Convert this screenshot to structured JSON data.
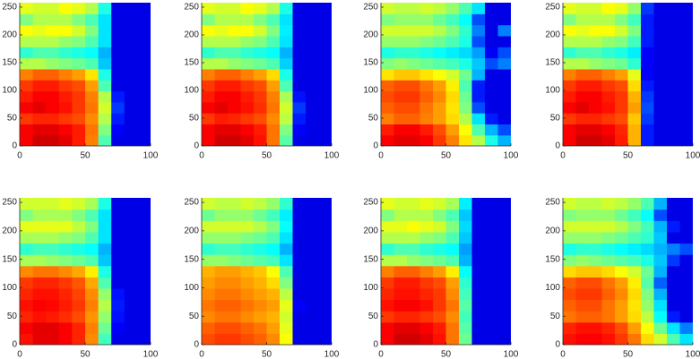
{
  "chart_data": [
    {
      "type": "heatmap",
      "xlim": [
        0,
        100
      ],
      "ylim": [
        0,
        258
      ],
      "xticks": [
        0,
        50,
        100
      ],
      "yticks": [
        0,
        50,
        100,
        150,
        200,
        250
      ],
      "clim": [
        0,
        100
      ],
      "colormap": "jet",
      "z": [
        [
          88,
          92,
          92,
          90,
          85,
          75,
          45,
          10,
          10,
          10
        ],
        [
          88,
          90,
          90,
          88,
          85,
          76,
          50,
          12,
          10,
          10
        ],
        [
          82,
          84,
          84,
          82,
          80,
          74,
          55,
          15,
          10,
          10
        ],
        [
          88,
          90,
          88,
          86,
          82,
          76,
          58,
          18,
          10,
          10
        ],
        [
          85,
          88,
          88,
          85,
          82,
          75,
          55,
          15,
          10,
          10
        ],
        [
          82,
          85,
          85,
          82,
          80,
          72,
          45,
          10,
          10,
          10
        ],
        [
          75,
          78,
          78,
          75,
          72,
          65,
          40,
          10,
          10,
          10
        ],
        [
          55,
          55,
          52,
          50,
          48,
          45,
          32,
          10,
          10,
          10
        ],
        [
          42,
          45,
          45,
          42,
          40,
          38,
          30,
          10,
          10,
          10
        ],
        [
          55,
          55,
          55,
          52,
          50,
          45,
          35,
          10,
          10,
          10
        ],
        [
          62,
          60,
          62,
          62,
          58,
          50,
          35,
          10,
          10,
          10
        ],
        [
          50,
          55,
          55,
          55,
          50,
          45,
          35,
          10,
          10,
          10
        ],
        [
          60,
          58,
          58,
          62,
          60,
          55,
          40,
          10,
          10,
          10
        ]
      ]
    },
    {
      "type": "heatmap",
      "xlim": [
        0,
        100
      ],
      "ylim": [
        0,
        258
      ],
      "xticks": [
        0,
        50,
        100
      ],
      "yticks": [
        0,
        50,
        100,
        150,
        200,
        250
      ],
      "clim": [
        0,
        100
      ],
      "colormap": "jet",
      "z": [
        [
          88,
          92,
          92,
          90,
          86,
          76,
          46,
          10,
          10,
          10
        ],
        [
          88,
          90,
          90,
          88,
          85,
          76,
          50,
          12,
          10,
          10
        ],
        [
          82,
          85,
          84,
          82,
          80,
          74,
          56,
          15,
          10,
          10
        ],
        [
          88,
          90,
          88,
          86,
          83,
          76,
          58,
          18,
          10,
          10
        ],
        [
          85,
          88,
          88,
          85,
          82,
          75,
          54,
          14,
          10,
          10
        ],
        [
          82,
          85,
          85,
          82,
          80,
          72,
          45,
          10,
          10,
          10
        ],
        [
          75,
          78,
          78,
          75,
          72,
          66,
          40,
          10,
          10,
          10
        ],
        [
          55,
          55,
          52,
          50,
          48,
          45,
          33,
          10,
          10,
          10
        ],
        [
          42,
          45,
          45,
          42,
          40,
          38,
          30,
          10,
          10,
          10
        ],
        [
          55,
          55,
          55,
          52,
          50,
          45,
          35,
          10,
          10,
          10
        ],
        [
          62,
          60,
          62,
          62,
          58,
          50,
          36,
          10,
          10,
          10
        ],
        [
          50,
          55,
          55,
          55,
          50,
          45,
          35,
          10,
          10,
          10
        ],
        [
          60,
          58,
          58,
          62,
          60,
          55,
          40,
          10,
          10,
          10
        ]
      ]
    },
    {
      "type": "heatmap",
      "xlim": [
        0,
        100
      ],
      "ylim": [
        0,
        258
      ],
      "xticks": [
        0,
        50,
        100
      ],
      "yticks": [
        0,
        50,
        100,
        150,
        200,
        250
      ],
      "clim": [
        0,
        100
      ],
      "colormap": "jet",
      "z": [
        [
          88,
          90,
          90,
          88,
          82,
          75,
          65,
          55,
          40,
          30
        ],
        [
          85,
          88,
          88,
          85,
          80,
          72,
          62,
          45,
          30,
          20
        ],
        [
          75,
          78,
          78,
          75,
          72,
          66,
          55,
          35,
          15,
          10
        ],
        [
          78,
          80,
          80,
          76,
          72,
          65,
          50,
          20,
          10,
          10
        ],
        [
          80,
          82,
          82,
          78,
          74,
          66,
          48,
          15,
          10,
          10
        ],
        [
          78,
          80,
          80,
          76,
          72,
          64,
          45,
          15,
          10,
          10
        ],
        [
          65,
          68,
          68,
          65,
          62,
          58,
          48,
          30,
          10,
          10
        ],
        [
          50,
          52,
          50,
          48,
          46,
          44,
          40,
          32,
          20,
          25
        ],
        [
          40,
          42,
          42,
          40,
          38,
          36,
          34,
          28,
          12,
          20
        ],
        [
          52,
          52,
          52,
          50,
          48,
          45,
          40,
          20,
          10,
          10
        ],
        [
          58,
          58,
          58,
          58,
          55,
          50,
          42,
          25,
          10,
          25
        ],
        [
          50,
          52,
          52,
          52,
          48,
          44,
          38,
          20,
          10,
          10
        ],
        [
          58,
          56,
          56,
          58,
          56,
          52,
          45,
          35,
          10,
          10
        ]
      ]
    },
    {
      "type": "heatmap",
      "xlim": [
        0,
        100
      ],
      "ylim": [
        0,
        258
      ],
      "xticks": [
        0,
        50,
        100
      ],
      "yticks": [
        0,
        50,
        100,
        150,
        200,
        250
      ],
      "clim": [
        0,
        100
      ],
      "colormap": "jet",
      "z": [
        [
          88,
          92,
          92,
          90,
          85,
          70,
          15,
          10,
          10,
          10
        ],
        [
          88,
          90,
          90,
          88,
          84,
          70,
          15,
          10,
          10,
          10
        ],
        [
          82,
          84,
          84,
          82,
          80,
          68,
          18,
          10,
          10,
          10
        ],
        [
          88,
          90,
          88,
          86,
          82,
          72,
          20,
          10,
          10,
          10
        ],
        [
          85,
          88,
          88,
          85,
          82,
          70,
          18,
          10,
          10,
          10
        ],
        [
          82,
          85,
          85,
          82,
          80,
          66,
          15,
          10,
          10,
          10
        ],
        [
          75,
          78,
          78,
          75,
          72,
          60,
          12,
          10,
          10,
          10
        ],
        [
          55,
          55,
          52,
          50,
          48,
          42,
          12,
          10,
          10,
          10
        ],
        [
          42,
          45,
          45,
          42,
          40,
          36,
          12,
          10,
          10,
          10
        ],
        [
          55,
          55,
          55,
          52,
          50,
          44,
          15,
          10,
          10,
          10
        ],
        [
          62,
          60,
          62,
          62,
          58,
          50,
          15,
          10,
          10,
          10
        ],
        [
          50,
          55,
          55,
          55,
          50,
          44,
          15,
          10,
          10,
          10
        ],
        [
          60,
          58,
          58,
          62,
          60,
          52,
          18,
          10,
          10,
          10
        ]
      ]
    },
    {
      "type": "heatmap",
      "xlim": [
        0,
        100
      ],
      "ylim": [
        0,
        258
      ],
      "xticks": [
        0,
        50,
        100
      ],
      "yticks": [
        0,
        50,
        100,
        150,
        200,
        250
      ],
      "clim": [
        0,
        100
      ],
      "colormap": "jet",
      "z": [
        [
          86,
          90,
          90,
          88,
          84,
          74,
          44,
          10,
          10,
          10
        ],
        [
          88,
          90,
          90,
          88,
          84,
          75,
          48,
          12,
          10,
          10
        ],
        [
          84,
          86,
          85,
          83,
          80,
          73,
          52,
          14,
          10,
          10
        ],
        [
          86,
          88,
          87,
          85,
          82,
          75,
          55,
          15,
          10,
          10
        ],
        [
          84,
          86,
          86,
          84,
          81,
          74,
          52,
          14,
          10,
          10
        ],
        [
          82,
          84,
          84,
          82,
          79,
          71,
          45,
          10,
          10,
          10
        ],
        [
          74,
          76,
          76,
          74,
          71,
          64,
          40,
          10,
          10,
          10
        ],
        [
          54,
          54,
          52,
          50,
          48,
          45,
          32,
          10,
          10,
          10
        ],
        [
          42,
          44,
          44,
          42,
          40,
          38,
          30,
          10,
          10,
          10
        ],
        [
          54,
          54,
          54,
          52,
          50,
          45,
          35,
          10,
          10,
          10
        ],
        [
          60,
          60,
          60,
          60,
          56,
          50,
          35,
          10,
          10,
          10
        ],
        [
          50,
          54,
          54,
          54,
          50,
          45,
          35,
          10,
          10,
          10
        ],
        [
          58,
          58,
          58,
          60,
          58,
          54,
          40,
          10,
          10,
          10
        ]
      ]
    },
    {
      "type": "heatmap",
      "xlim": [
        0,
        100
      ],
      "ylim": [
        0,
        258
      ],
      "xticks": [
        0,
        50,
        100
      ],
      "yticks": [
        0,
        50,
        100,
        150,
        200,
        250
      ],
      "clim": [
        0,
        100
      ],
      "colormap": "jet",
      "z": [
        [
          80,
          82,
          82,
          80,
          78,
          74,
          62,
          10,
          10,
          10
        ],
        [
          78,
          80,
          80,
          78,
          76,
          72,
          60,
          10,
          10,
          10
        ],
        [
          74,
          76,
          76,
          74,
          72,
          70,
          58,
          10,
          10,
          10
        ],
        [
          76,
          78,
          78,
          76,
          74,
          72,
          60,
          12,
          10,
          10
        ],
        [
          74,
          76,
          76,
          74,
          72,
          70,
          56,
          10,
          10,
          10
        ],
        [
          72,
          74,
          74,
          72,
          70,
          66,
          50,
          10,
          10,
          10
        ],
        [
          70,
          72,
          72,
          70,
          68,
          62,
          45,
          10,
          10,
          10
        ],
        [
          52,
          52,
          50,
          48,
          46,
          44,
          35,
          10,
          10,
          10
        ],
        [
          42,
          44,
          44,
          42,
          40,
          38,
          30,
          10,
          10,
          10
        ],
        [
          52,
          52,
          52,
          50,
          48,
          45,
          35,
          10,
          10,
          10
        ],
        [
          58,
          58,
          58,
          58,
          55,
          50,
          38,
          10,
          10,
          10
        ],
        [
          48,
          52,
          52,
          52,
          48,
          44,
          36,
          10,
          10,
          10
        ],
        [
          58,
          56,
          56,
          58,
          56,
          52,
          42,
          10,
          10,
          10
        ]
      ]
    },
    {
      "type": "heatmap",
      "xlim": [
        0,
        100
      ],
      "ylim": [
        0,
        258
      ],
      "xticks": [
        0,
        50,
        100
      ],
      "yticks": [
        0,
        50,
        100,
        150,
        200,
        250
      ],
      "clim": [
        0,
        100
      ],
      "colormap": "jet",
      "z": [
        [
          88,
          92,
          92,
          90,
          86,
          76,
          48,
          10,
          10,
          10
        ],
        [
          88,
          90,
          90,
          88,
          85,
          76,
          46,
          10,
          10,
          10
        ],
        [
          82,
          84,
          84,
          82,
          80,
          74,
          44,
          10,
          10,
          10
        ],
        [
          86,
          88,
          88,
          86,
          82,
          76,
          46,
          10,
          10,
          10
        ],
        [
          84,
          86,
          86,
          84,
          82,
          74,
          44,
          10,
          10,
          10
        ],
        [
          82,
          85,
          85,
          82,
          80,
          72,
          42,
          10,
          10,
          10
        ],
        [
          75,
          78,
          78,
          75,
          72,
          64,
          38,
          10,
          10,
          10
        ],
        [
          55,
          55,
          52,
          50,
          48,
          45,
          30,
          10,
          10,
          10
        ],
        [
          42,
          45,
          45,
          42,
          40,
          38,
          28,
          10,
          10,
          10
        ],
        [
          55,
          55,
          55,
          52,
          50,
          45,
          32,
          10,
          10,
          10
        ],
        [
          60,
          60,
          62,
          60,
          58,
          50,
          34,
          10,
          10,
          10
        ],
        [
          50,
          55,
          55,
          55,
          50,
          45,
          32,
          10,
          10,
          10
        ],
        [
          60,
          58,
          58,
          60,
          58,
          54,
          36,
          10,
          10,
          10
        ]
      ]
    },
    {
      "type": "heatmap",
      "xlim": [
        0,
        100
      ],
      "ylim": [
        0,
        258
      ],
      "xticks": [
        0,
        50,
        100
      ],
      "yticks": [
        0,
        50,
        100,
        150,
        200,
        250
      ],
      "clim": [
        0,
        100
      ],
      "colormap": "jet",
      "z": [
        [
          86,
          88,
          88,
          86,
          82,
          76,
          66,
          58,
          45,
          35
        ],
        [
          84,
          86,
          86,
          84,
          80,
          72,
          62,
          48,
          35,
          25
        ],
        [
          76,
          78,
          78,
          76,
          72,
          66,
          56,
          38,
          15,
          10
        ],
        [
          78,
          80,
          80,
          76,
          72,
          65,
          52,
          35,
          10,
          10
        ],
        [
          80,
          82,
          82,
          78,
          74,
          66,
          50,
          30,
          10,
          10
        ],
        [
          78,
          80,
          80,
          76,
          72,
          64,
          46,
          22,
          10,
          10
        ],
        [
          66,
          68,
          68,
          66,
          62,
          58,
          48,
          30,
          10,
          10
        ],
        [
          50,
          52,
          50,
          48,
          46,
          44,
          40,
          32,
          18,
          10
        ],
        [
          40,
          42,
          42,
          40,
          38,
          36,
          34,
          30,
          25,
          20
        ],
        [
          52,
          52,
          52,
          50,
          48,
          45,
          42,
          32,
          10,
          10
        ],
        [
          58,
          58,
          58,
          58,
          55,
          50,
          44,
          30,
          15,
          10
        ],
        [
          50,
          52,
          52,
          52,
          48,
          44,
          38,
          20,
          10,
          10
        ],
        [
          58,
          56,
          56,
          58,
          56,
          52,
          45,
          30,
          10,
          10
        ]
      ]
    }
  ]
}
